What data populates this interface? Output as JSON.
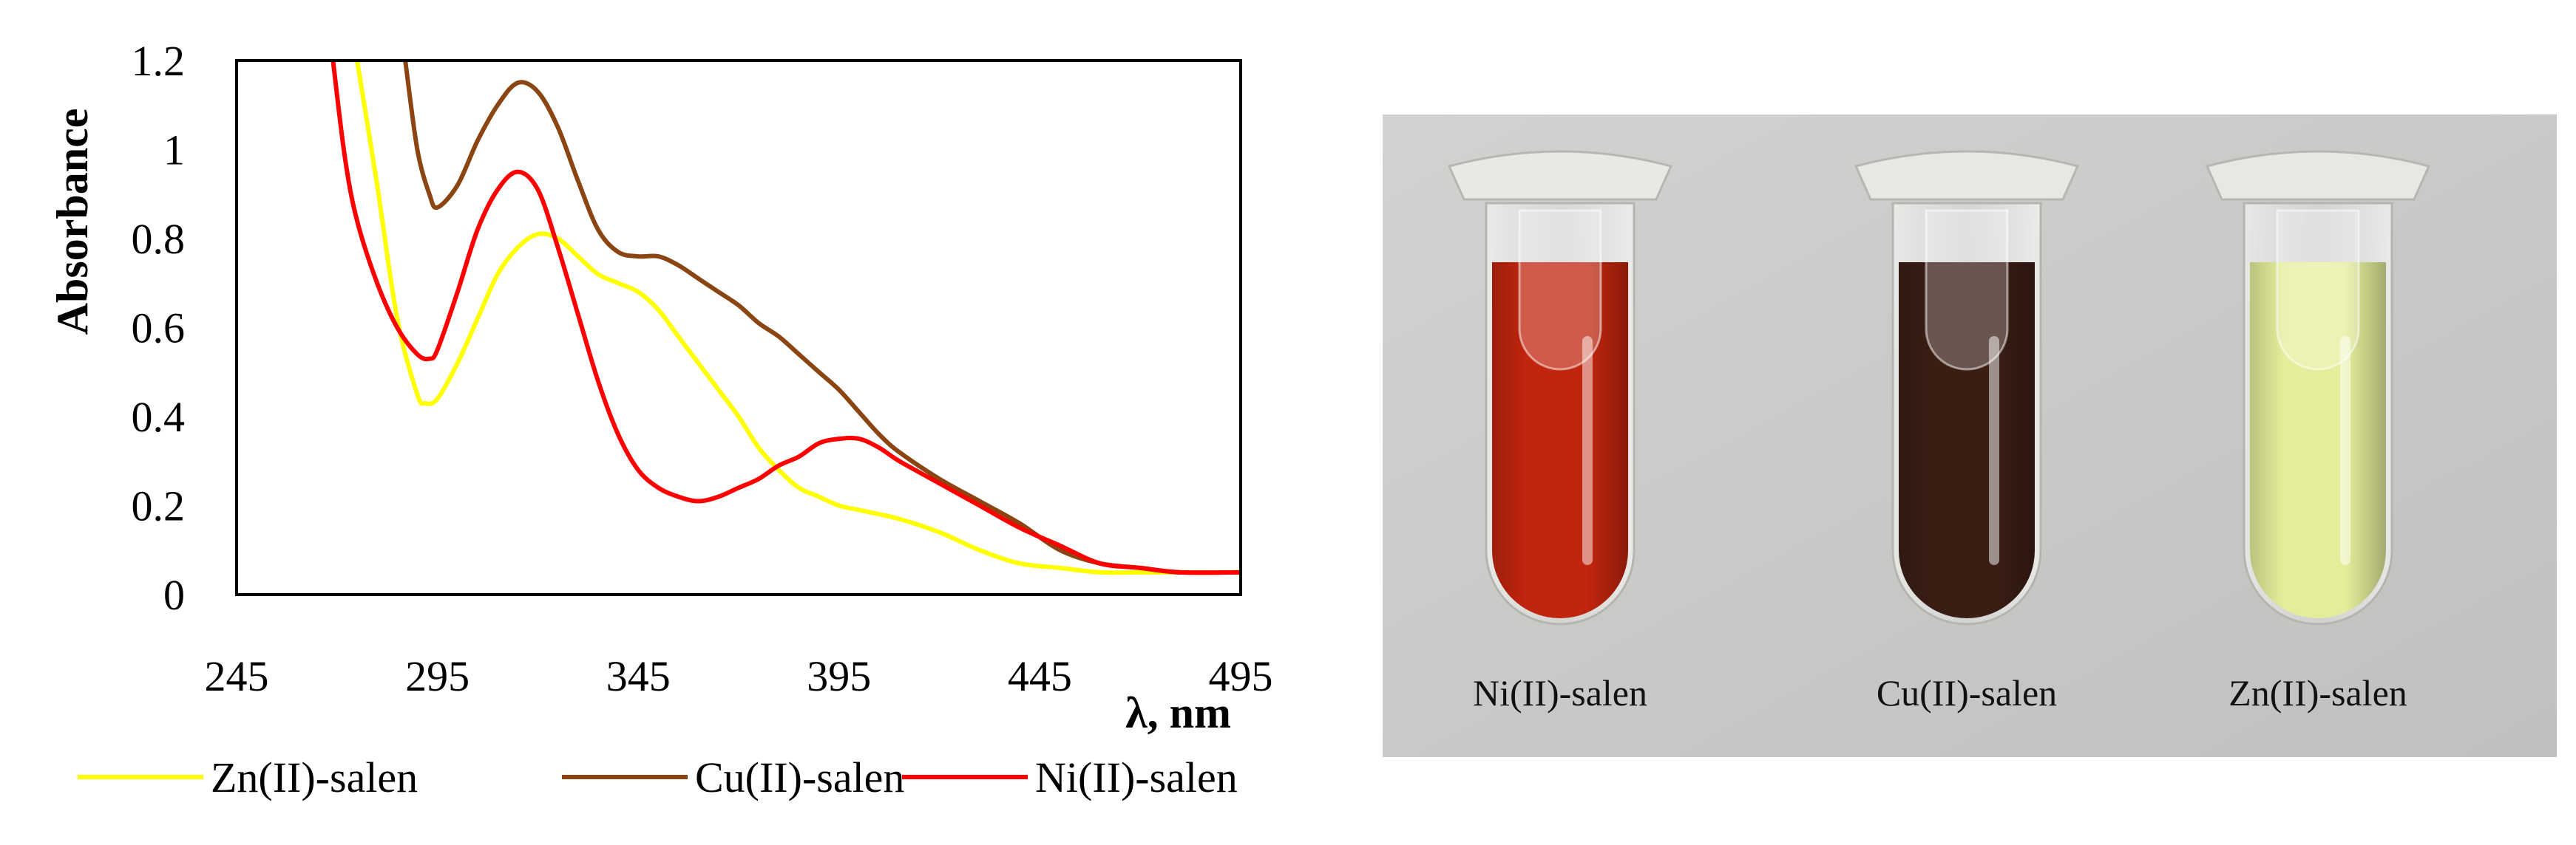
{
  "chart_data": {
    "type": "line",
    "title": "",
    "xlabel": "λ, nm",
    "ylabel": "Absorbance",
    "xlim": [
      245,
      495
    ],
    "ylim": [
      0,
      1.2
    ],
    "x_ticks": [
      "245",
      "295",
      "345",
      "395",
      "445",
      "495"
    ],
    "y_ticks": [
      "0",
      "0.2",
      "0.4",
      "0.6",
      "0.8",
      "1",
      "1.2"
    ],
    "grid": false,
    "legend_position": "bottom",
    "series": [
      {
        "name": "Zn(II)-salen",
        "color": "#FFFF00",
        "x": [
          275,
          280,
          285,
          290,
          292,
          295,
          300,
          305,
          310,
          315,
          320,
          325,
          330,
          335,
          340,
          345,
          350,
          355,
          360,
          365,
          370,
          375,
          380,
          385,
          390,
          395,
          400,
          410,
          420,
          430,
          440,
          450,
          460,
          470,
          480,
          495
        ],
        "y": [
          1.2,
          0.92,
          0.62,
          0.45,
          0.43,
          0.44,
          0.52,
          0.62,
          0.72,
          0.78,
          0.81,
          0.8,
          0.76,
          0.72,
          0.7,
          0.68,
          0.64,
          0.58,
          0.52,
          0.46,
          0.4,
          0.33,
          0.28,
          0.24,
          0.22,
          0.2,
          0.19,
          0.17,
          0.14,
          0.1,
          0.07,
          0.06,
          0.05,
          0.05,
          0.05,
          0.05
        ]
      },
      {
        "name": "Cu(II)-salen",
        "color": "#8B4513",
        "x": [
          287,
          290,
          293,
          295,
          300,
          305,
          310,
          315,
          320,
          325,
          330,
          335,
          340,
          345,
          350,
          355,
          360,
          365,
          370,
          375,
          380,
          385,
          390,
          395,
          400,
          405,
          410,
          420,
          430,
          440,
          450,
          460,
          470,
          480,
          495
        ],
        "y": [
          1.2,
          1.0,
          0.9,
          0.87,
          0.92,
          1.02,
          1.1,
          1.15,
          1.13,
          1.05,
          0.93,
          0.82,
          0.77,
          0.76,
          0.76,
          0.74,
          0.71,
          0.68,
          0.65,
          0.61,
          0.58,
          0.54,
          0.5,
          0.46,
          0.41,
          0.36,
          0.32,
          0.26,
          0.21,
          0.16,
          0.1,
          0.07,
          0.06,
          0.05,
          0.05
        ]
      },
      {
        "name": "Ni(II)-salen",
        "color": "#FF0000",
        "x": [
          269,
          272,
          275,
          280,
          285,
          290,
          293,
          295,
          300,
          305,
          310,
          315,
          320,
          325,
          330,
          335,
          340,
          345,
          350,
          355,
          360,
          365,
          370,
          375,
          380,
          385,
          390,
          395,
          400,
          405,
          410,
          420,
          430,
          440,
          450,
          460,
          470,
          480,
          495
        ],
        "y": [
          1.2,
          0.98,
          0.84,
          0.7,
          0.6,
          0.54,
          0.53,
          0.55,
          0.68,
          0.82,
          0.91,
          0.95,
          0.91,
          0.78,
          0.63,
          0.48,
          0.36,
          0.28,
          0.24,
          0.22,
          0.21,
          0.22,
          0.24,
          0.26,
          0.29,
          0.31,
          0.34,
          0.35,
          0.35,
          0.33,
          0.3,
          0.25,
          0.2,
          0.15,
          0.11,
          0.07,
          0.06,
          0.05,
          0.05
        ]
      }
    ]
  },
  "photo": {
    "background_color": "#C9C9C7",
    "labels": [
      "Ni(II)-salen",
      "Cu(II)-salen",
      "Zn(II)-salen"
    ],
    "liquid_colors": [
      "#C0250E",
      "#3A1E14",
      "#E4EE9A"
    ]
  }
}
